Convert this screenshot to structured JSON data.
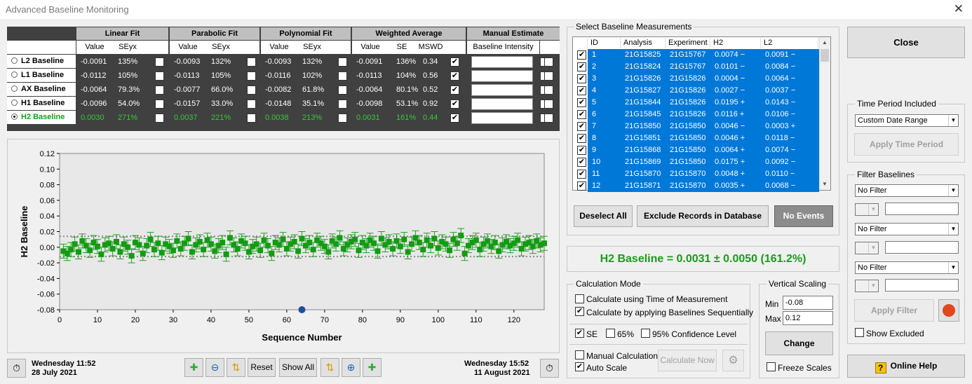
{
  "window": {
    "title": "Advanced Baseline Monitoring",
    "close_glyph": "✕"
  },
  "grid": {
    "groups": [
      "Linear Fit",
      "Parabolic Fit",
      "Polynomial Fit",
      "Weighted Average",
      "Manual Estimate"
    ],
    "sub": {
      "linear": [
        "Value",
        "SEyx"
      ],
      "parabolic": [
        "Value",
        "SEyx"
      ],
      "poly": [
        "Value",
        "SEyx"
      ],
      "wavg": [
        "Value",
        "SE",
        "MSWD"
      ],
      "manual": "Baseline Intensity"
    },
    "rows": [
      {
        "label": "L2 Baseline",
        "sel": false,
        "lin": [
          "-0.0091",
          "135%"
        ],
        "par": [
          "-0.0093",
          "132%"
        ],
        "poly": [
          "-0.0093",
          "132%"
        ],
        "wavg": [
          "-0.0091",
          "136%",
          "0.34"
        ],
        "wchk": true
      },
      {
        "label": "L1 Baseline",
        "sel": false,
        "lin": [
          "-0.0112",
          "105%"
        ],
        "par": [
          "-0.0113",
          "105%"
        ],
        "poly": [
          "-0.0116",
          "102%"
        ],
        "wavg": [
          "-0.0113",
          "104%",
          "0.56"
        ],
        "wchk": true
      },
      {
        "label": "AX Baseline",
        "sel": false,
        "lin": [
          "-0.0064",
          "79.3%"
        ],
        "par": [
          "-0.0077",
          "66.0%"
        ],
        "poly": [
          "-0.0082",
          "61.8%"
        ],
        "wavg": [
          "-0.0064",
          "80.1%",
          "0.52"
        ],
        "wchk": true
      },
      {
        "label": "H1 Baseline",
        "sel": false,
        "lin": [
          "-0.0096",
          "54.0%"
        ],
        "par": [
          "-0.0157",
          "33.0%"
        ],
        "poly": [
          "-0.0148",
          "35.1%"
        ],
        "wavg": [
          "-0.0098",
          "53.1%",
          "0.92"
        ],
        "wchk": true
      },
      {
        "label": "H2 Baseline",
        "sel": true,
        "lin": [
          "0.0030",
          "271%"
        ],
        "par": [
          "0.0037",
          "221%"
        ],
        "poly": [
          "0.0038",
          "213%"
        ],
        "wavg": [
          "0.0031",
          "161%",
          "0.44"
        ],
        "wchk": true
      }
    ]
  },
  "chart_data": {
    "type": "scatter",
    "xlabel": "Sequence Number",
    "ylabel": "H2 Baseline",
    "xlim": [
      0,
      128
    ],
    "ylim": [
      -0.08,
      0.12
    ],
    "xticks": [
      0,
      10,
      20,
      30,
      40,
      50,
      60,
      70,
      80,
      90,
      100,
      110,
      120
    ],
    "yticks": [
      "0.12",
      "0.10",
      "0.08",
      "0.06",
      "0.04",
      "0.02",
      "0.00",
      "-0.02",
      "-0.04",
      "-0.06",
      "-0.08"
    ],
    "mean": 0.0031,
    "band": [
      -0.012,
      0.014
    ],
    "error": 0.009,
    "marker": {
      "x": 64,
      "y": -0.08
    },
    "points": [
      -0.005,
      -0.008,
      -0.003,
      0.004,
      -0.006,
      0.008,
      0.002,
      -0.004,
      0.006,
      0.001,
      -0.009,
      0.003,
      0.005,
      -0.002,
      0.007,
      -0.006,
      0.004,
      0.0,
      -0.011,
      0.006,
      0.003,
      -0.008,
      0.002,
      0.01,
      -0.003,
      0.005,
      -0.007,
      0.004,
      0.001,
      -0.004,
      0.008,
      -0.002,
      0.005,
      0.011,
      -0.006,
      0.003,
      0.007,
      -0.003,
      0.009,
      0.004,
      -0.005,
      0.002,
      0.006,
      -0.009,
      0.012,
      0.003,
      -0.002,
      0.008,
      0.005,
      -0.006,
      0.001,
      0.004,
      -0.004,
      0.009,
      0.002,
      -0.008,
      0.006,
      0.003,
      0.01,
      -0.002,
      0.004,
      0.007,
      -0.005,
      0.011,
      0.002,
      0.006,
      -0.003,
      0.009,
      0.005,
      0.001,
      -0.006,
      0.008,
      0.004,
      0.012,
      -0.002,
      0.003,
      0.007,
      0.01,
      -0.004,
      0.006,
      0.002,
      0.009,
      0.005,
      -0.005,
      0.011,
      0.003,
      0.007,
      -0.002,
      0.008,
      0.001,
      0.01,
      -0.006,
      0.004,
      0.012,
      0.006,
      -0.003,
      0.009,
      0.002,
      0.011,
      -0.001,
      0.007,
      0.004,
      -0.004,
      0.01,
      0.005,
      0.015,
      -0.008,
      0.002,
      0.006,
      0.009,
      -0.003,
      0.004,
      0.008,
      0.001,
      0.006,
      -0.005,
      0.003,
      0.007,
      0.002,
      0.005,
      0.009,
      -0.002,
      0.004,
      0.006,
      0.001,
      0.008,
      0.003,
      0.005
    ]
  },
  "time": {
    "start_day": "Wednesday 11:52",
    "start_date": "28 July 2021",
    "end_day": "Wednesday 15:52",
    "end_date": "11 August 2021"
  },
  "toolbar": {
    "reset": "Reset",
    "show_all": "Show All"
  },
  "measurements": {
    "legend": "Select Baseline Measurements",
    "cols": [
      "ID",
      "Analysis",
      "Experiment",
      "H2",
      "L2"
    ],
    "rows": [
      [
        "1",
        "21G15825",
        "21G15767",
        "0.0074 −",
        "0.0091 −"
      ],
      [
        "2",
        "21G15824",
        "21G15767",
        "0.0101 −",
        "0.0084 −"
      ],
      [
        "3",
        "21G15826",
        "21G15826",
        "0.0004 −",
        "0.0064 −"
      ],
      [
        "4",
        "21G15827",
        "21G15826",
        "0.0027 −",
        "0.0037 −"
      ],
      [
        "5",
        "21G15844",
        "21G15826",
        "0.0195 +",
        "0.0143 −"
      ],
      [
        "6",
        "21G15845",
        "21G15826",
        "0.0116 +",
        "0.0106 −"
      ],
      [
        "7",
        "21G15850",
        "21G15850",
        "0.0046 −",
        "0.0003 +"
      ],
      [
        "8",
        "21G15851",
        "21G15850",
        "0.0046 +",
        "0.0118 −"
      ],
      [
        "9",
        "21G15868",
        "21G15850",
        "0.0064 +",
        "0.0074 −"
      ],
      [
        "10",
        "21G15869",
        "21G15850",
        "0.0175 +",
        "0.0092 −"
      ],
      [
        "11",
        "21G15870",
        "21G15870",
        "0.0048 +",
        "0.0110 −"
      ],
      [
        "12",
        "21G15871",
        "21G15870",
        "0.0035 +",
        "0.0068 −"
      ]
    ],
    "deselect": "Deselect All",
    "exclude": "Exclude Records in Database",
    "no_events": "No Events"
  },
  "result": "H2 Baseline = 0.0031 ± 0.0050 (161.2%)",
  "calc": {
    "legend": "Calculation Mode",
    "time_opt": "Calculate using Time of Measurement",
    "seq_opt": "Calculate by applying Baselines Sequentially",
    "se": "SE",
    "c65": "65%",
    "c95": "95% Confidence Level",
    "manual": "Manual Calculation",
    "auto": "Auto Scale",
    "calc_now": "Calculate Now"
  },
  "vscale": {
    "legend": "Vertical Scaling",
    "min_label": "Min",
    "min": "-0.08",
    "max_label": "Max",
    "max": "0.12",
    "change": "Change",
    "freeze": "Freeze Scales"
  },
  "right": {
    "close": "Close",
    "tp_legend": "Time Period Included",
    "tp_value": "Custom Date Range",
    "apply_tp": "Apply Time Period",
    "fb_legend": "Filter Baselines",
    "filter1": "No Filter",
    "filter2": "No Filter",
    "filter3": "No Filter",
    "apply_filter": "Apply Filter",
    "show_excluded": "Show Excluded",
    "help": "Online Help"
  },
  "colors": {
    "green": "#1a9c1a",
    "point": "#139b13",
    "select": "#0078d7"
  }
}
